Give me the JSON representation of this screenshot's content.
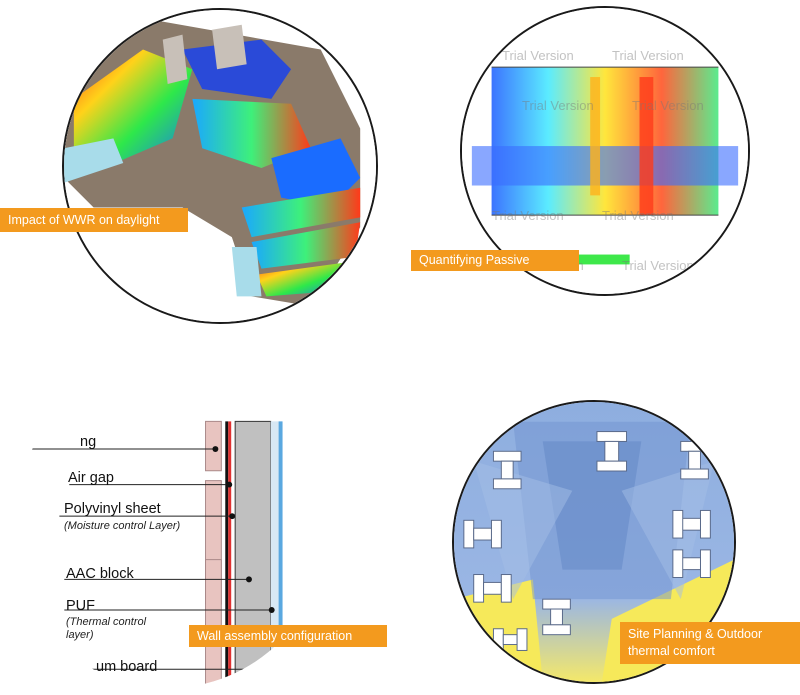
{
  "panels": {
    "daylight": {
      "label": "Impact of WWR on daylight"
    },
    "passive": {
      "label": "Quantifying Passive",
      "watermark": "Trial Version"
    },
    "wall": {
      "label": "Wall assembly configuration",
      "layers": [
        {
          "name": "ng",
          "note": ""
        },
        {
          "name": "Air gap",
          "note": ""
        },
        {
          "name": "Polyvinyl sheet",
          "note": "(Moisture control Layer)"
        },
        {
          "name": "AAC block",
          "note": ""
        },
        {
          "name": "PUF",
          "note": "(Thermal control layer)"
        },
        {
          "name": "um board",
          "note": ""
        }
      ]
    },
    "site": {
      "label": "Site Planning & Outdoor thermal comfort"
    }
  },
  "colors": {
    "tag_orange": "#f39a1e",
    "circle_border": "#1a1a1a"
  }
}
